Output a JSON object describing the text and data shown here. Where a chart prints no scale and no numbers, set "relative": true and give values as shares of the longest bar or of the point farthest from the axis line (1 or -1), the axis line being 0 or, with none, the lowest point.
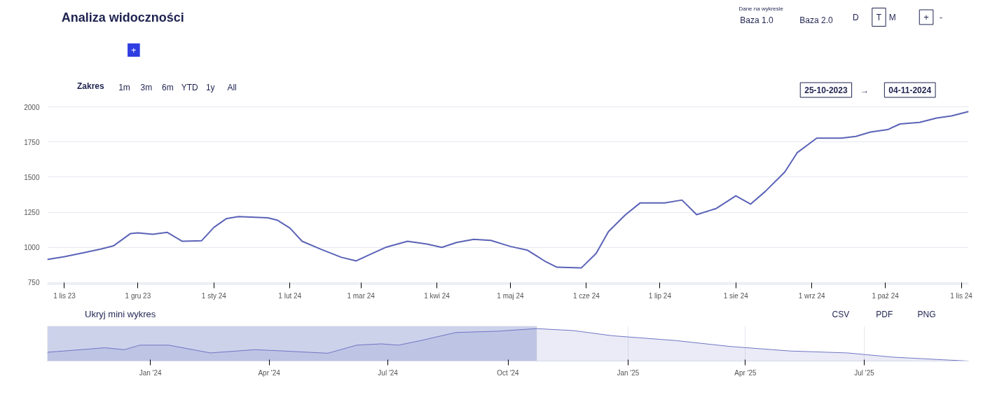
{
  "chart_data": [
    {
      "type": "line",
      "title": "Analiza widoczności",
      "x": [
        "2023-10-25",
        "2023-11-01",
        "2023-11-09",
        "2023-11-16",
        "2023-11-21",
        "2023-11-28",
        "2023-12-01",
        "2023-12-07",
        "2023-12-13",
        "2023-12-19",
        "2023-12-27",
        "2024-01-01",
        "2024-01-06",
        "2024-01-11",
        "2024-01-23",
        "2024-01-27",
        "2024-02-01",
        "2024-02-06",
        "2024-02-14",
        "2024-02-22",
        "2024-02-28",
        "2024-03-05",
        "2024-03-11",
        "2024-03-20",
        "2024-03-28",
        "2024-04-03",
        "2024-04-09",
        "2024-04-16",
        "2024-04-23",
        "2024-05-01",
        "2024-05-08",
        "2024-05-15",
        "2024-05-20",
        "2024-05-30",
        "2024-06-05",
        "2024-06-10",
        "2024-06-17",
        "2024-06-23",
        "2024-07-03",
        "2024-07-10",
        "2024-07-16",
        "2024-07-24",
        "2024-08-01",
        "2024-08-07",
        "2024-08-13",
        "2024-08-21",
        "2024-08-26",
        "2024-09-03",
        "2024-09-13",
        "2024-09-19",
        "2024-09-25",
        "2024-10-02",
        "2024-10-07",
        "2024-10-15",
        "2024-10-22",
        "2024-10-28",
        "2024-11-04"
      ],
      "series": [
        {
          "color": "#5b63b7",
          "values": [
            914,
            934,
            963,
            989,
            1011,
            1099,
            1103,
            1094,
            1107,
            1044,
            1048,
            1143,
            1204,
            1219,
            1211,
            1193,
            1138,
            1044,
            985,
            930,
            904,
            952,
            1000,
            1044,
            1024,
            1000,
            1035,
            1057,
            1050,
            1007,
            980,
            903,
            859,
            855,
            958,
            1112,
            1233,
            1317,
            1317,
            1337,
            1233,
            1277,
            1367,
            1308,
            1398,
            1537,
            1673,
            1777,
            1777,
            1790,
            1821,
            1838,
            1878,
            1889,
            1920,
            1935,
            1966
          ]
        }
      ],
      "xlim": [
        "2023-10-25",
        "2024-11-04"
      ],
      "xticks": [
        {
          "value": "2023-11-01",
          "label": "1 lis 23"
        },
        {
          "value": "2023-12-01",
          "label": "1 gru 23"
        },
        {
          "value": "2024-01-01",
          "label": "1 sty 24"
        },
        {
          "value": "2024-02-01",
          "label": "1 lut 24"
        },
        {
          "value": "2024-03-01",
          "label": "1 mar 24"
        },
        {
          "value": "2024-04-01",
          "label": "1 kwi 24"
        },
        {
          "value": "2024-05-01",
          "label": "1 maj 24"
        },
        {
          "value": "2024-06-01",
          "label": "1 cze 24"
        },
        {
          "value": "2024-07-01",
          "label": "1 lip 24"
        },
        {
          "value": "2024-08-01",
          "label": "1 sie 24"
        },
        {
          "value": "2024-09-01",
          "label": "1 wrz 24"
        },
        {
          "value": "2024-10-01",
          "label": "1 paź 24"
        },
        {
          "value": "2024-11-01",
          "label": "1 lis 24"
        }
      ],
      "ylim": [
        740,
        2010
      ],
      "yticks": [
        750,
        1000,
        1250,
        1500,
        1750,
        2000
      ],
      "grid": "y",
      "marker": "none",
      "line_style": "solid",
      "annotations": [
        "Dane na wykresie",
        "Baza 1.0",
        "Baza 2.0",
        "D",
        "T",
        "M",
        "+",
        "-",
        "+",
        "Zakres",
        "1m",
        "3m",
        "6m",
        "YTD",
        "1y",
        "All",
        "25-10-2023",
        "→",
        "04-11-2024"
      ]
    },
    {
      "type": "area",
      "relative": true,
      "x": [
        "2023-10-14",
        "2023-11-15",
        "2023-11-27",
        "2023-12-12",
        "2023-12-24",
        "2024-01-15",
        "2024-02-16",
        "2024-03-21",
        "2024-04-12",
        "2024-05-16",
        "2024-06-07",
        "2024-06-26",
        "2024-07-09",
        "2024-07-26",
        "2024-08-22",
        "2024-09-23",
        "2024-10-23",
        "2024-11-20",
        "2024-12-20",
        "2025-02-07",
        "2025-03-20",
        "2025-05-05",
        "2025-06-18",
        "2025-07-23",
        "2025-08-30",
        "2025-09-19"
      ],
      "series": [
        {
          "color": "#6f76c4",
          "values": [
            0.27,
            0.37,
            0.41,
            0.35,
            0.49,
            0.49,
            0.25,
            0.35,
            0.31,
            0.24,
            0.49,
            0.53,
            0.49,
            0.63,
            0.88,
            0.92,
            1.0,
            0.94,
            0.78,
            0.63,
            0.45,
            0.31,
            0.25,
            0.12,
            0.04,
            0.0
          ]
        }
      ],
      "xlim": [
        "2023-10-14",
        "2025-09-19"
      ],
      "xticks": [
        {
          "value": "2024-01-01",
          "label": "Jan '24"
        },
        {
          "value": "2024-04-01",
          "label": "Apr '24"
        },
        {
          "value": "2024-07-01",
          "label": "Jul '24"
        },
        {
          "value": "2024-10-01",
          "label": "Oct '24"
        },
        {
          "value": "2025-01-01",
          "label": "Jan '25"
        },
        {
          "value": "2025-04-01",
          "label": "Apr '25"
        },
        {
          "value": "2025-07-01",
          "label": "Jul '25"
        }
      ],
      "tick_labels": "x",
      "grid": "x",
      "bands": [
        {
          "axis": "x",
          "from": "2023-10-14",
          "to": "2024-10-23",
          "color": "#ccd2ea"
        }
      ],
      "annotations": [
        "Ukryj mini wykres",
        "CSV",
        "PDF",
        "PNG"
      ]
    }
  ]
}
